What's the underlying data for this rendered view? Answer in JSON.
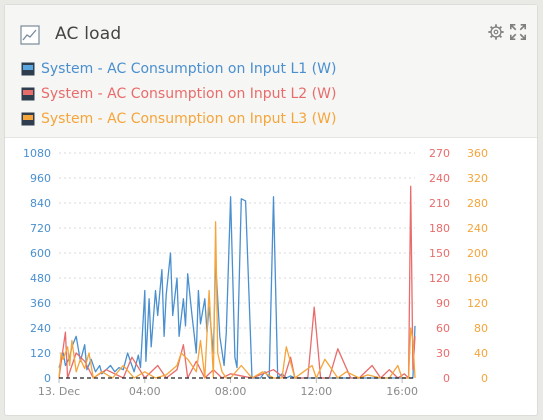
{
  "widget": {
    "title": "AC load",
    "title_icon": "line-chart-icon",
    "tools": [
      "gear-icon",
      "expand-icon"
    ]
  },
  "legend": [
    {
      "label": "System - AC Consumption on Input L1 (W)",
      "color": "#4a8fcf"
    },
    {
      "label": "System - AC Consumption on Input L2 (W)",
      "color": "#e86c6c"
    },
    {
      "label": "System - AC Consumption on Input L3 (W)",
      "color": "#f5a53a"
    }
  ],
  "chart_data": {
    "type": "line",
    "x_ticks": [
      "13. Dec",
      "04:00",
      "08:00",
      "12:00",
      "16:00"
    ],
    "x_tick_hours": [
      0,
      4,
      8,
      12,
      16
    ],
    "xlim_hours": [
      0,
      16.6
    ],
    "axes": [
      {
        "side": "left",
        "color": "#4a8fcf",
        "ylim": [
          0,
          1080
        ],
        "ticks": [
          0,
          120,
          240,
          360,
          480,
          600,
          720,
          840,
          960,
          1080
        ]
      },
      {
        "side": "right-inner",
        "color": "#e86c6c",
        "ylim": [
          0,
          270
        ],
        "ticks": [
          0,
          30,
          60,
          90,
          120,
          150,
          180,
          210,
          240,
          270
        ]
      },
      {
        "side": "right-outer",
        "color": "#f5a53a",
        "ylim": [
          0,
          360
        ],
        "ticks": [
          0,
          40,
          80,
          120,
          160,
          200,
          240,
          280,
          320,
          360
        ]
      }
    ],
    "grid": true,
    "series": [
      {
        "name": "System - AC Consumption on Input L1 (W)",
        "axis": 0,
        "x": [
          0,
          0.2,
          0.3,
          0.5,
          0.6,
          0.8,
          1.0,
          1.2,
          1.3,
          1.5,
          1.7,
          1.9,
          2.0,
          2.2,
          2.4,
          2.6,
          2.8,
          3.0,
          3.2,
          3.4,
          3.5,
          3.7,
          3.8,
          4.0,
          4.05,
          4.2,
          4.3,
          4.5,
          4.6,
          4.8,
          4.9,
          5.0,
          5.2,
          5.3,
          5.5,
          5.6,
          5.8,
          5.9,
          6.0,
          6.2,
          6.4,
          6.5,
          6.6,
          6.8,
          6.9,
          7.0,
          7.2,
          7.3,
          7.5,
          7.7,
          7.8,
          8.0,
          8.2,
          8.3,
          8.5,
          8.7,
          9.0,
          9.2,
          9.4,
          9.6,
          9.8,
          10.0,
          10.2,
          10.4,
          10.6,
          10.8,
          11.0,
          11.2,
          11.5,
          12.0,
          12.5,
          13.0,
          13.5,
          14.0,
          14.5,
          15.0,
          15.5,
          16.0,
          16.3,
          16.5,
          16.6
        ],
        "y": [
          50,
          120,
          60,
          100,
          150,
          200,
          80,
          160,
          40,
          90,
          30,
          60,
          20,
          40,
          60,
          30,
          50,
          40,
          120,
          60,
          30,
          110,
          50,
          420,
          80,
          380,
          150,
          420,
          300,
          520,
          200,
          400,
          600,
          300,
          480,
          200,
          380,
          250,
          500,
          300,
          120,
          420,
          260,
          380,
          220,
          340,
          120,
          560,
          200,
          60,
          220,
          870,
          100,
          50,
          860,
          850,
          0,
          0,
          0,
          30,
          0,
          870,
          0,
          20,
          0,
          10,
          0,
          0,
          0,
          0,
          0,
          0,
          0,
          0,
          0,
          0,
          0,
          0,
          0,
          0,
          250
        ]
      },
      {
        "name": "System - AC Consumption on Input L2 (W)",
        "axis": 1,
        "x": [
          0,
          0.3,
          0.4,
          0.8,
          1.2,
          1.6,
          2.2,
          3.0,
          3.4,
          4.0,
          4.6,
          5.0,
          5.5,
          5.8,
          6.0,
          6.4,
          6.8,
          7.2,
          7.6,
          8.0,
          9.0,
          10.0,
          10.5,
          10.8,
          11.0,
          11.6,
          11.9,
          12.2,
          12.6,
          13.0,
          13.6,
          14.0,
          14.6,
          15.0,
          15.4,
          15.8,
          16.1,
          16.3,
          16.4,
          16.5,
          16.6
        ],
        "y": [
          0,
          55,
          0,
          30,
          20,
          0,
          10,
          0,
          25,
          0,
          15,
          0,
          10,
          40,
          0,
          20,
          0,
          10,
          0,
          5,
          0,
          10,
          0,
          25,
          0,
          0,
          85,
          0,
          0,
          35,
          0,
          0,
          15,
          0,
          10,
          0,
          5,
          0,
          230,
          10,
          50
        ]
      },
      {
        "name": "System - AC Consumption on Input L3 (W)",
        "axis": 2,
        "x": [
          0,
          0.1,
          0.2,
          0.4,
          0.5,
          0.6,
          0.8,
          1.0,
          1.2,
          1.4,
          1.6,
          2.0,
          2.5,
          3.0,
          3.5,
          4.0,
          4.5,
          5.0,
          5.5,
          5.7,
          6.0,
          6.4,
          6.6,
          6.8,
          7.0,
          7.2,
          7.3,
          7.4,
          7.6,
          7.8,
          8.0,
          8.5,
          9.0,
          9.5,
          10.0,
          10.4,
          10.6,
          11.0,
          11.4,
          11.8,
          12.0,
          12.4,
          13.0,
          13.4,
          14.0,
          14.4,
          15.0,
          15.4,
          15.8,
          16.0,
          16.3,
          16.4,
          16.5,
          16.6
        ],
        "y": [
          0,
          40,
          30,
          50,
          20,
          60,
          10,
          30,
          15,
          40,
          0,
          10,
          0,
          20,
          0,
          10,
          0,
          5,
          20,
          40,
          30,
          10,
          60,
          0,
          140,
          0,
          250,
          40,
          10,
          0,
          0,
          20,
          0,
          10,
          0,
          0,
          50,
          0,
          10,
          20,
          0,
          30,
          0,
          10,
          0,
          5,
          0,
          0,
          20,
          0,
          0,
          80,
          60,
          0
        ]
      }
    ],
    "zero_line_color": "#222222"
  }
}
